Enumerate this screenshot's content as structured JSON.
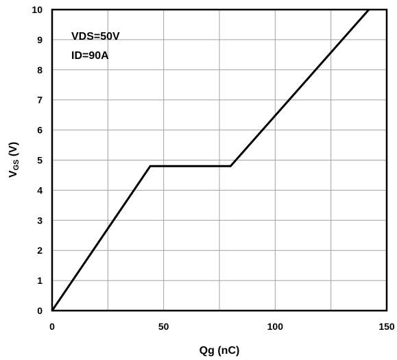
{
  "chart_data": {
    "type": "line",
    "title": "",
    "xlabel": "Qg (nC)",
    "ylabel": {
      "main": "V",
      "sub": "GS",
      "unit": " (V)"
    },
    "xlim": [
      0,
      150
    ],
    "ylim": [
      0,
      10
    ],
    "xticks": [
      0,
      50,
      100,
      150
    ],
    "yticks": [
      0,
      1,
      2,
      3,
      4,
      5,
      6,
      7,
      8,
      9,
      10
    ],
    "x_grid_step": 25,
    "grid": true,
    "legend": "none",
    "annotations": [
      "VDS=50V",
      "ID=90A"
    ],
    "series": [
      {
        "color": "#000000",
        "points": [
          [
            0,
            0
          ],
          [
            44,
            4.8
          ],
          [
            80,
            4.8
          ],
          [
            142,
            10
          ]
        ]
      }
    ]
  }
}
